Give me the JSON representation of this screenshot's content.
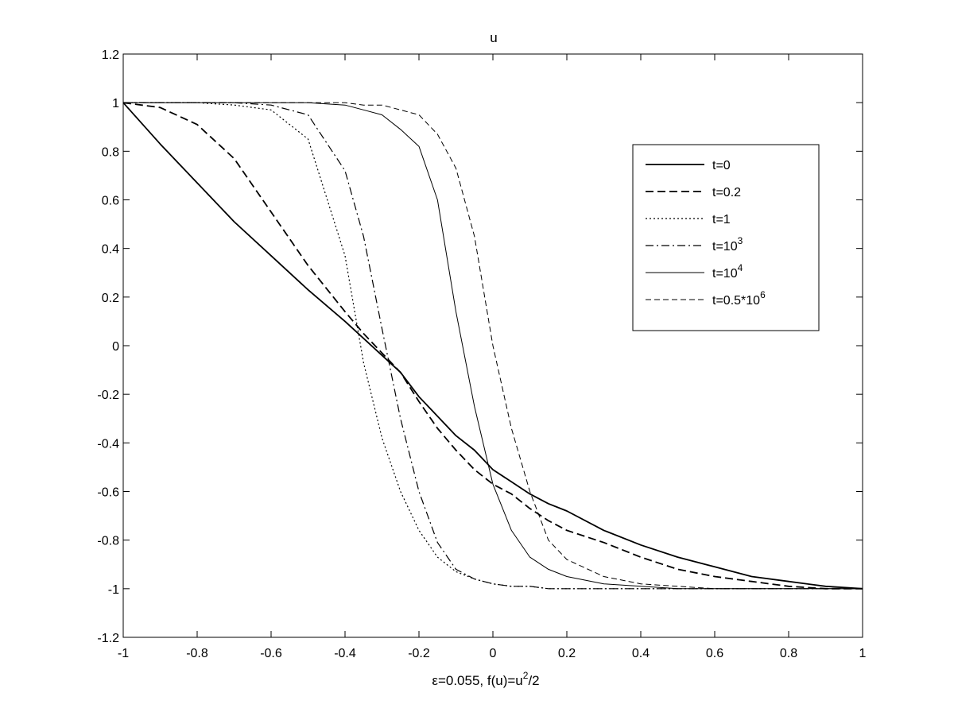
{
  "chart_data": {
    "type": "line",
    "title": "u",
    "xlabel": "ε=0.055, f(u)=u^2/2",
    "xlabel_parts": {
      "main": "ε=0.055, f(u)=u",
      "sup": "2",
      "tail": "/2"
    },
    "ylabel": "",
    "xlim": [
      -1,
      1
    ],
    "ylim": [
      -1.2,
      1.2
    ],
    "xticks": [
      -1,
      -0.8,
      -0.6,
      -0.4,
      -0.2,
      0,
      0.2,
      0.4,
      0.6,
      0.8,
      1
    ],
    "yticks": [
      -1.2,
      -1,
      -0.8,
      -0.6,
      -0.4,
      -0.2,
      0,
      0.2,
      0.4,
      0.6,
      0.8,
      1,
      1.2
    ],
    "xtick_labels": [
      "-1",
      "-0.8",
      "-0.6",
      "-0.4",
      "-0.2",
      "0",
      "0.2",
      "0.4",
      "0.6",
      "0.8",
      "1"
    ],
    "ytick_labels": [
      "-1.2",
      "-1",
      "-0.8",
      "-0.6",
      "-0.4",
      "-0.2",
      "0",
      "0.2",
      "0.4",
      "0.6",
      "0.8",
      "1",
      "1.2"
    ],
    "grid": false,
    "legend_position": "top-right",
    "x": [
      -1,
      -0.9,
      -0.8,
      -0.7,
      -0.6,
      -0.5,
      -0.4,
      -0.35,
      -0.3,
      -0.25,
      -0.2,
      -0.15,
      -0.1,
      -0.05,
      0,
      0.05,
      0.1,
      0.15,
      0.2,
      0.3,
      0.4,
      0.5,
      0.6,
      0.7,
      0.8,
      0.9,
      1
    ],
    "series": [
      {
        "name": "t=0",
        "label_main": "t=0",
        "label_sup": "",
        "style": "solid",
        "width": 1.8,
        "values": [
          1,
          0.83,
          0.67,
          0.51,
          0.37,
          0.23,
          0.1,
          0.03,
          -0.04,
          -0.11,
          -0.21,
          -0.29,
          -0.37,
          -0.43,
          -0.51,
          -0.56,
          -0.61,
          -0.65,
          -0.68,
          -0.76,
          -0.82,
          -0.87,
          -0.91,
          -0.95,
          -0.97,
          -0.99,
          -1
        ]
      },
      {
        "name": "t=0.2",
        "label_main": "t=0.2",
        "label_sup": "",
        "style": "dashed",
        "width": 1.8,
        "values": [
          1,
          0.98,
          0.91,
          0.77,
          0.55,
          0.33,
          0.14,
          0.05,
          -0.03,
          -0.11,
          -0.23,
          -0.34,
          -0.43,
          -0.51,
          -0.57,
          -0.61,
          -0.67,
          -0.72,
          -0.76,
          -0.81,
          -0.87,
          -0.92,
          -0.95,
          -0.97,
          -0.99,
          -1,
          -1
        ]
      },
      {
        "name": "t=1",
        "label_main": "t=1",
        "label_sup": "",
        "style": "dotted",
        "width": 1.2,
        "values": [
          1,
          1,
          1,
          0.99,
          0.97,
          0.85,
          0.37,
          -0.07,
          -0.38,
          -0.6,
          -0.76,
          -0.87,
          -0.93,
          -0.96,
          -0.98,
          -0.99,
          -0.99,
          -1,
          -1,
          -1,
          -1,
          -1,
          -1,
          -1,
          -1,
          -1,
          -1
        ]
      },
      {
        "name": "t=10^3",
        "label_main": "t=10",
        "label_sup": "3",
        "style": "dashdot",
        "width": 1.2,
        "values": [
          1,
          1,
          1,
          1,
          0.99,
          0.95,
          0.72,
          0.45,
          0.07,
          -0.3,
          -0.6,
          -0.81,
          -0.92,
          -0.96,
          -0.98,
          -0.99,
          -0.99,
          -1,
          -1,
          -1,
          -1,
          -1,
          -1,
          -1,
          -1,
          -1,
          -1
        ]
      },
      {
        "name": "t=10^4",
        "label_main": "t=10",
        "label_sup": "4",
        "style": "solid",
        "width": 1.0,
        "values": [
          1,
          1,
          1,
          1,
          1,
          1,
          0.99,
          0.97,
          0.95,
          0.89,
          0.82,
          0.6,
          0.14,
          -0.25,
          -0.57,
          -0.76,
          -0.87,
          -0.92,
          -0.95,
          -0.98,
          -0.99,
          -1,
          -1,
          -1,
          -1,
          -1,
          -1
        ]
      },
      {
        "name": "t=0.5*10^6",
        "label_main": "t=0.5*10",
        "label_sup": "6",
        "style": "dashed-thin",
        "width": 1.0,
        "values": [
          1,
          1,
          1,
          1,
          1,
          1,
          1,
          0.99,
          0.99,
          0.97,
          0.95,
          0.87,
          0.73,
          0.45,
          0.0,
          -0.34,
          -0.6,
          -0.8,
          -0.88,
          -0.95,
          -0.98,
          -0.99,
          -1,
          -1,
          -1,
          -1,
          -1
        ]
      }
    ]
  }
}
